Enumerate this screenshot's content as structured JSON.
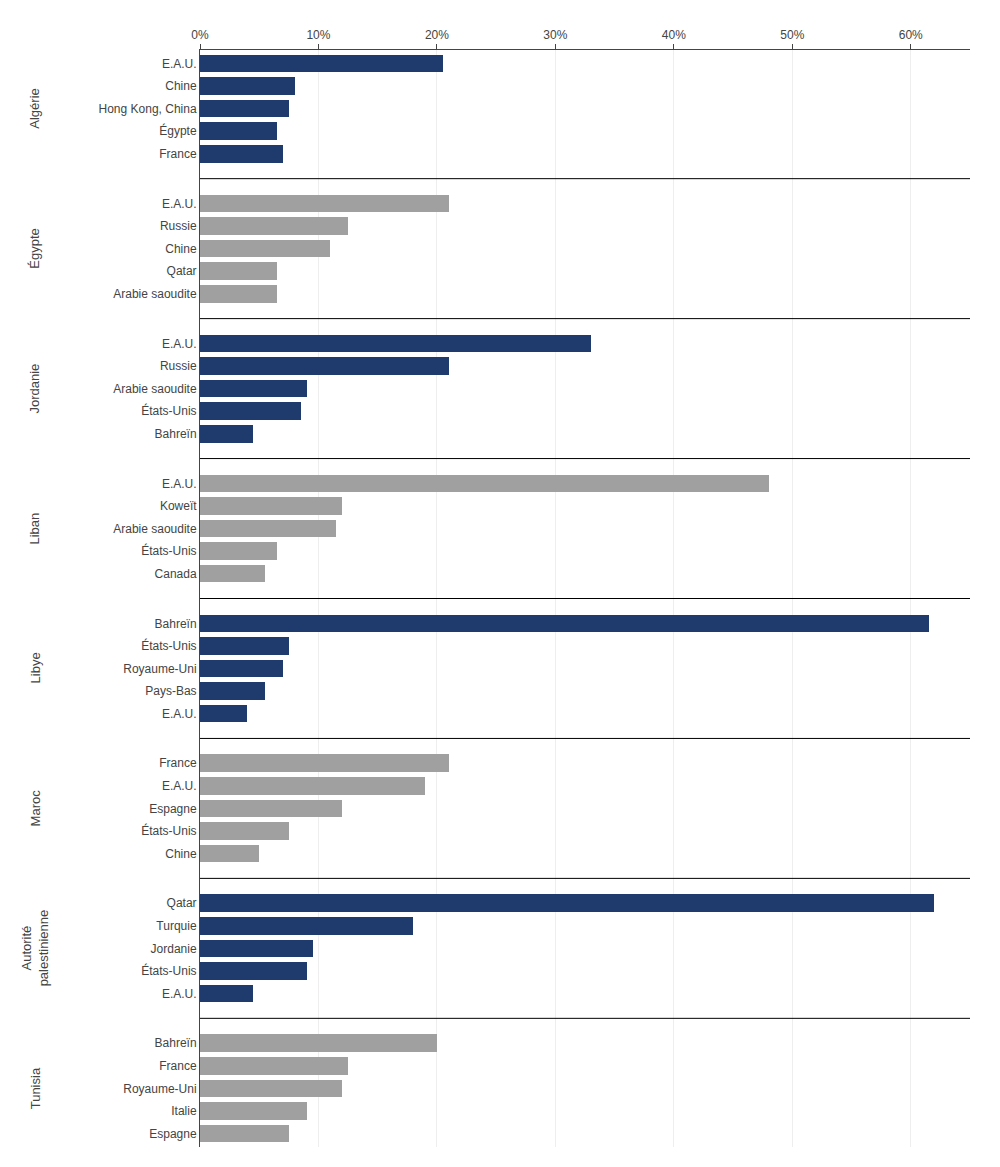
{
  "chart_data": {
    "type": "bar",
    "orientation": "horizontal",
    "grid": true,
    "xlim": [
      0,
      65
    ],
    "xticks": [
      {
        "value": 0,
        "label": "0%"
      },
      {
        "value": 10,
        "label": "10%"
      },
      {
        "value": 20,
        "label": "20%"
      },
      {
        "value": 30,
        "label": "30%"
      },
      {
        "value": 40,
        "label": "40%"
      },
      {
        "value": 50,
        "label": "50%"
      },
      {
        "value": 60,
        "label": "60%"
      }
    ],
    "series": [
      {
        "name": "Algérie",
        "color": "#1f3b6e",
        "categories": [
          "E.A.U.",
          "Chine",
          "Hong Kong, China",
          "Égypte",
          "France"
        ],
        "values": [
          20.5,
          8.0,
          7.5,
          6.5,
          7.0
        ]
      },
      {
        "name": "Égypte",
        "color": "#a0a0a0",
        "categories": [
          "E.A.U.",
          "Russie",
          "Chine",
          "Qatar",
          "Arabie saoudite"
        ],
        "values": [
          21.0,
          12.5,
          11.0,
          6.5,
          6.5
        ]
      },
      {
        "name": "Jordanie",
        "color": "#1f3b6e",
        "categories": [
          "E.A.U.",
          "Russie",
          "Arabie saoudite",
          "États-Unis",
          "Bahreïn"
        ],
        "values": [
          33.0,
          21.0,
          9.0,
          8.5,
          4.5
        ]
      },
      {
        "name": "Liban",
        "color": "#a0a0a0",
        "categories": [
          "E.A.U.",
          "Koweït",
          "Arabie saoudite",
          "États-Unis",
          "Canada"
        ],
        "values": [
          48.0,
          12.0,
          11.5,
          6.5,
          5.5
        ]
      },
      {
        "name": "Libye",
        "color": "#1f3b6e",
        "categories": [
          "Bahreïn",
          "États-Unis",
          "Royaume-Uni",
          "Pays-Bas",
          "E.A.U."
        ],
        "values": [
          61.5,
          7.5,
          7.0,
          5.5,
          4.0
        ]
      },
      {
        "name": "Maroc",
        "color": "#a0a0a0",
        "categories": [
          "France",
          "E.A.U.",
          "Espagne",
          "États-Unis",
          "Chine"
        ],
        "values": [
          21.0,
          19.0,
          12.0,
          7.5,
          5.0
        ]
      },
      {
        "name": "Autorité\npalestinienne",
        "color": "#1f3b6e",
        "categories": [
          "Qatar",
          "Turquie",
          "Jordanie",
          "États-Unis",
          "E.A.U."
        ],
        "values": [
          62.0,
          18.0,
          9.5,
          9.0,
          4.5
        ]
      },
      {
        "name": "Tunisia",
        "color": "#a0a0a0",
        "categories": [
          "Bahreïn",
          "France",
          "Royaume-Uni",
          "Italie",
          "Espagne"
        ],
        "values": [
          20.0,
          12.5,
          12.0,
          9.0,
          7.5
        ]
      }
    ]
  }
}
